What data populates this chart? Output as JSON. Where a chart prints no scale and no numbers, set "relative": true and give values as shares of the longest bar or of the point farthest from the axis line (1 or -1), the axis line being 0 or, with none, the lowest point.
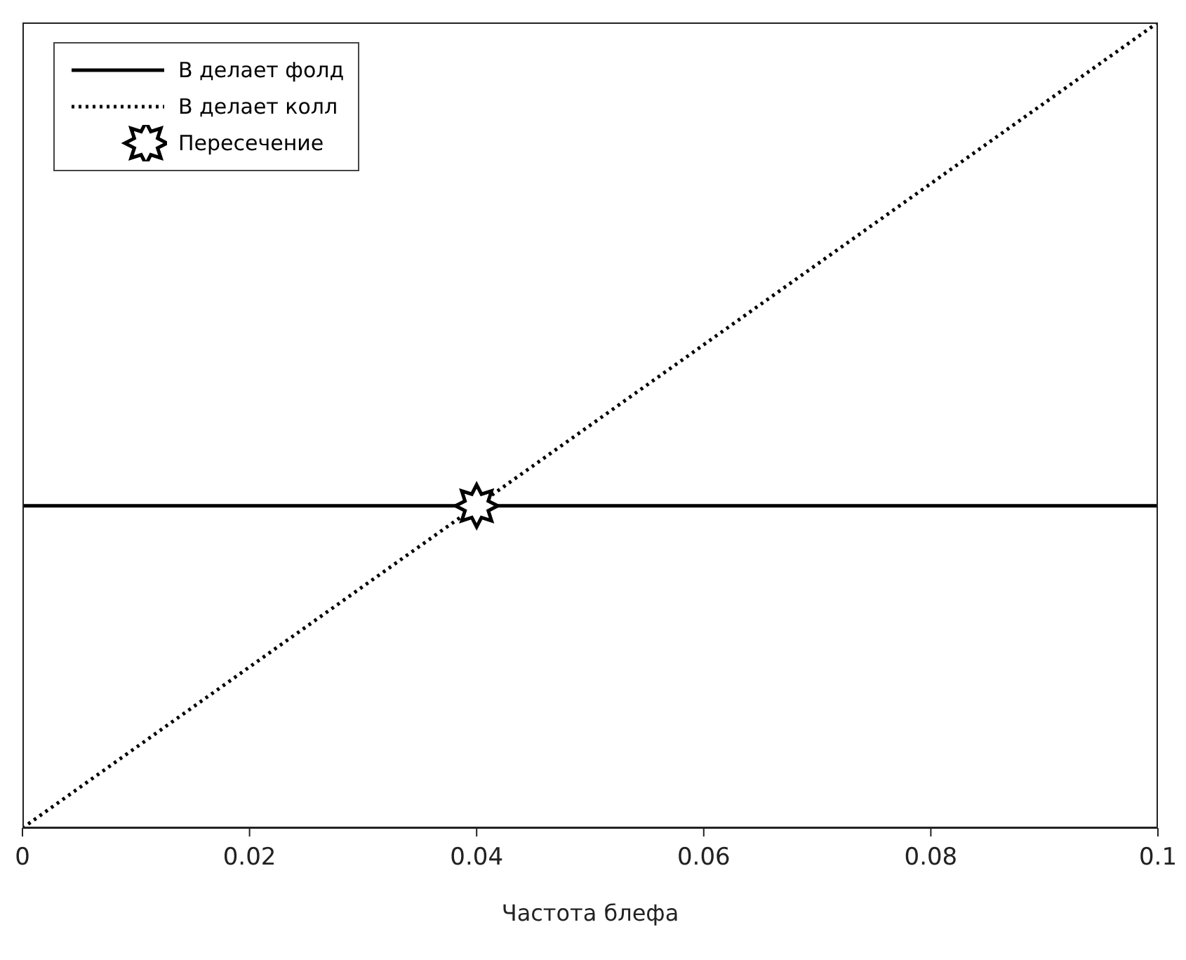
{
  "chart_data": {
    "type": "line",
    "xlabel": "Частота блефа",
    "relative": true,
    "xlim": [
      0,
      0.1
    ],
    "xticks": [
      0,
      0.02,
      0.04,
      0.06,
      0.08,
      0.1
    ],
    "grid": false,
    "legend": "top left",
    "marker": "none",
    "series": [
      {
        "name": "В делает фолд",
        "color": "#000000",
        "line_style": "solid",
        "x": [
          0,
          0.1
        ],
        "values": [
          0.4,
          0.4
        ]
      },
      {
        "name": "В делает колл",
        "color": "#000000",
        "line_style": "dotted",
        "x": [
          0,
          0.1
        ],
        "values": [
          0,
          1
        ]
      },
      {
        "name": "Пересечение",
        "type": "scatter",
        "marker": "star",
        "color": "#000000",
        "x": [
          0.04
        ],
        "values": [
          0.4
        ]
      }
    ]
  }
}
